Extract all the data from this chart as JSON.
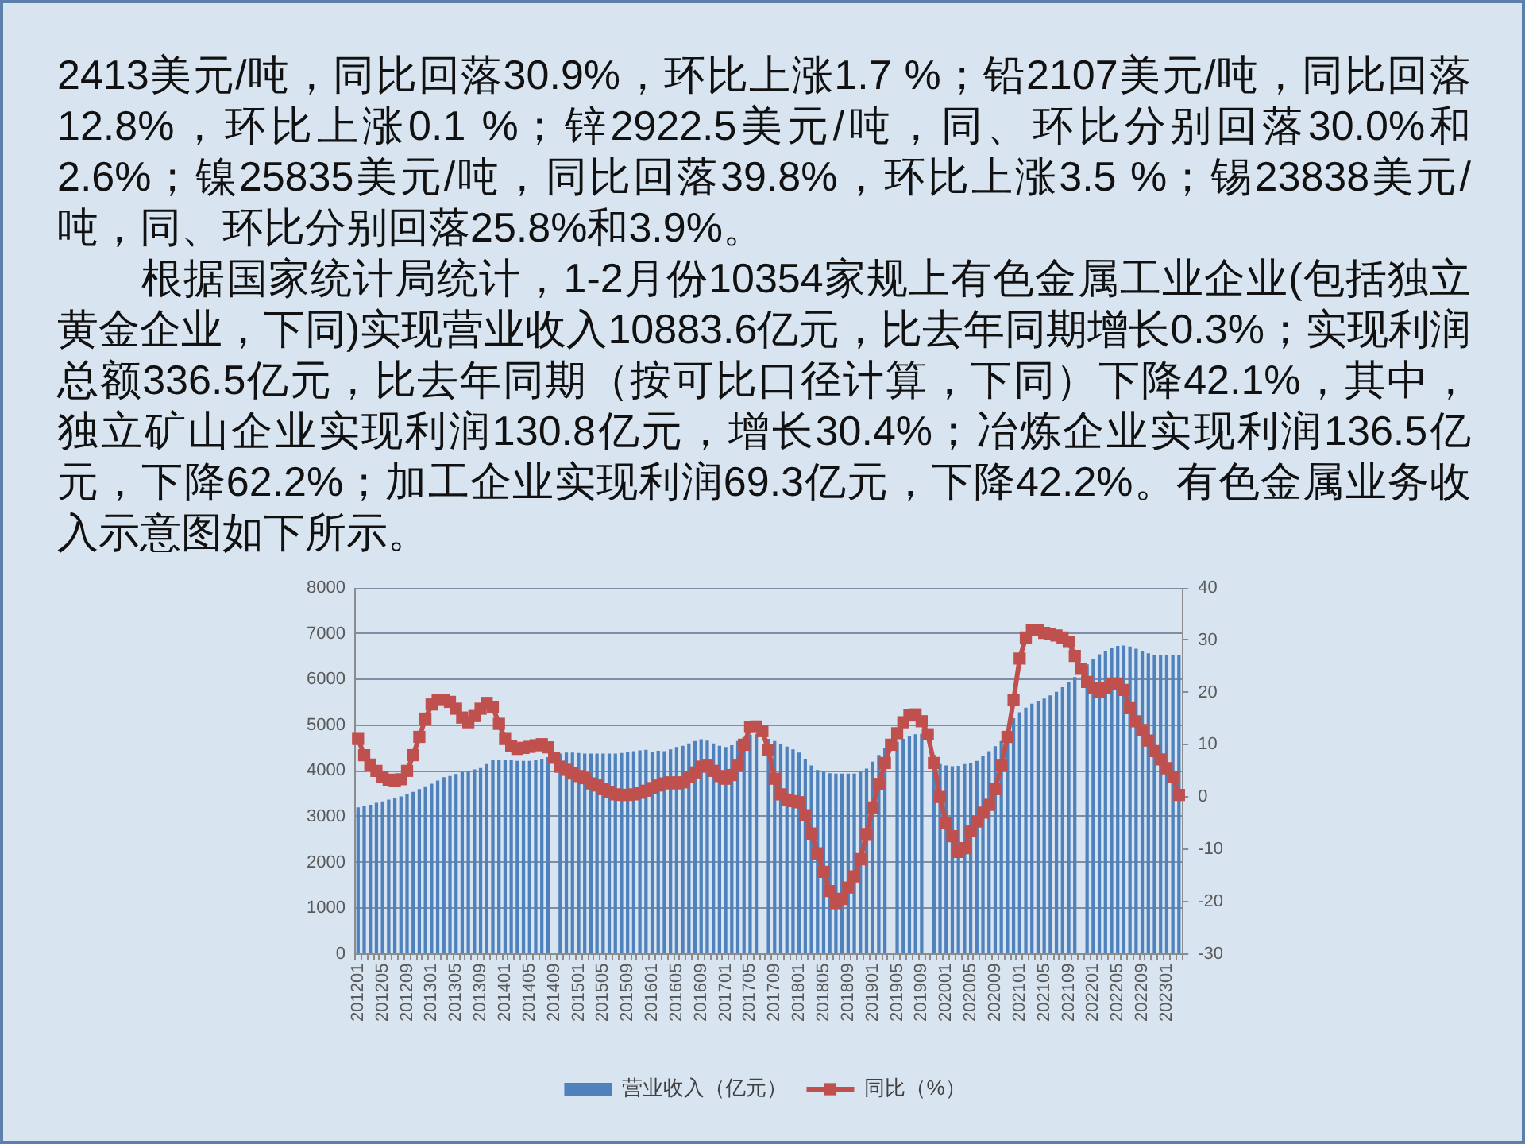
{
  "chart_data": {
    "type": "bar",
    "annotations": [
      "2413美元/吨，同比回落30.9%，环比上涨1.7 %；铅2107美元/吨，同比回落12.8%，环比上涨0.1 %；锌2922.5美元/吨，同、环比分别回落30.0%和2.6%；镍25835美元/吨，同比回落39.8%，环比上涨3.5 %；锡23838美元/吨，同、环比分别回落25.8%和3.9%。",
      "　　根据国家统计局统计，1-2月份10354家规上有色金属工业企业(包括独立黄金企业，下同)实现营业收入10883.6亿元，比去年同期增长0.3%；实现利润总额336.5亿元，比去年同期（按可比口径计算，下同）下降42.1%，其中，独立矿山企业实现利润130.8亿元，增长30.4%；冶炼企业实现利润136.5亿元，下降62.2%；加工企业实现利润69.3亿元，下降42.2%。有色金属业务收入示意图如下所示。"
    ],
    "categories": [
      "201201",
      null,
      null,
      null,
      "201205",
      null,
      null,
      null,
      "201209",
      null,
      null,
      null,
      "201301",
      null,
      null,
      null,
      "201305",
      null,
      null,
      null,
      "201309",
      null,
      null,
      null,
      "201401",
      null,
      null,
      null,
      "201405",
      null,
      null,
      null,
      "201409",
      null,
      null,
      null,
      "201501",
      null,
      null,
      null,
      "201505",
      null,
      null,
      null,
      "201509",
      null,
      null,
      null,
      "201601",
      null,
      null,
      null,
      "201605",
      null,
      null,
      null,
      "201609",
      null,
      null,
      null,
      "201701",
      null,
      null,
      null,
      "201705",
      null,
      null,
      null,
      "201709",
      null,
      null,
      null,
      "201801",
      null,
      null,
      null,
      "201805",
      null,
      null,
      null,
      "201809",
      null,
      null,
      null,
      "201901",
      null,
      null,
      null,
      "201905",
      null,
      null,
      null,
      "201909",
      null,
      null,
      null,
      "202001",
      null,
      null,
      null,
      "202005",
      null,
      null,
      null,
      "202009",
      null,
      null,
      null,
      "202101",
      null,
      null,
      null,
      "202105",
      null,
      null,
      null,
      "202109",
      null,
      null,
      null,
      "202201",
      null,
      null,
      null,
      "202205",
      null,
      null,
      null,
      "202209",
      null,
      null,
      null,
      "202301",
      null,
      null
    ],
    "series": [
      {
        "name": "营业收入（亿元）",
        "color": "#4f81bd",
        "values": [
          3200,
          3230,
          3260,
          3300,
          3330,
          3370,
          3400,
          3440,
          3490,
          3540,
          3600,
          3660,
          3720,
          3790,
          3860,
          3890,
          3930,
          3970,
          4000,
          4030,
          4060,
          4150,
          4230,
          4230,
          4230,
          4230,
          4220,
          4220,
          4220,
          4230,
          4260,
          4300,
          null,
          4380,
          4400,
          4400,
          4390,
          4380,
          4380,
          4380,
          4380,
          4380,
          4380,
          4390,
          4410,
          4430,
          4450,
          4460,
          4420,
          4440,
          4430,
          4470,
          4520,
          4550,
          4600,
          4650,
          4690,
          4660,
          4600,
          4550,
          4520,
          4560,
          4650,
          4740,
          4790,
          4810,
          null,
          4700,
          4650,
          4590,
          4530,
          4470,
          4400,
          4250,
          4120,
          4020,
          3980,
          3950,
          3940,
          3940,
          3940,
          3940,
          3980,
          4050,
          4200,
          4350,
          4500,
          null,
          4640,
          4700,
          4750,
          4800,
          4810,
          null,
          4350,
          4150,
          4120,
          4100,
          4110,
          4150,
          4180,
          4220,
          4330,
          4430,
          4540,
          4650,
          4900,
          5150,
          5280,
          5380,
          5470,
          5530,
          5580,
          5650,
          5730,
          5830,
          5950,
          6050,
          null,
          6330,
          6450,
          6550,
          6630,
          6680,
          6730,
          6740,
          6720,
          6670,
          6620,
          6570,
          6540,
          6530,
          6530,
          6530,
          6540
        ]
      },
      {
        "name": "同比（%）",
        "type": "line",
        "axis": "y2",
        "marker": "square",
        "color": "#c0504d",
        "values": [
          11.1,
          8.0,
          6.2,
          5.0,
          3.9,
          3.3,
          3.0,
          3.4,
          5.0,
          8.0,
          11.5,
          15.0,
          17.7,
          18.6,
          18.6,
          18.2,
          16.9,
          15.2,
          14.3,
          15.5,
          16.9,
          18.0,
          17.2,
          14.0,
          11.1,
          9.8,
          9.2,
          9.4,
          9.6,
          9.9,
          10.1,
          9.5,
          7.5,
          5.8,
          5.2,
          4.5,
          4.0,
          3.6,
          2.6,
          2.2,
          1.5,
          1.0,
          0.5,
          0.4,
          0.4,
          0.5,
          0.8,
          1.2,
          1.7,
          2.2,
          2.6,
          2.8,
          2.6,
          2.8,
          3.8,
          4.7,
          5.8,
          6.0,
          5.0,
          4.0,
          3.5,
          4.2,
          6.0,
          10.0,
          13.4,
          13.5,
          12.6,
          9.0,
          3.5,
          0.5,
          -0.5,
          -0.8,
          -1.0,
          -3.5,
          -7.0,
          -10.8,
          -14.3,
          -18.0,
          -20.3,
          -19.5,
          -17.3,
          -15.2,
          -11.9,
          -7.1,
          -2.0,
          2.5,
          6.5,
          10.0,
          12.2,
          14.3,
          15.6,
          15.8,
          14.5,
          12.0,
          6.5,
          0.0,
          -5.0,
          -7.5,
          -10.5,
          -9.8,
          -6.5,
          -4.7,
          -3.0,
          -1.5,
          1.5,
          6.0,
          11.5,
          18.5,
          26.5,
          30.5,
          32.0,
          32.0,
          31.4,
          31.2,
          30.9,
          30.5,
          29.7,
          27.0,
          24.5,
          22.0,
          20.8,
          20.2,
          20.8,
          21.7,
          21.7,
          20.5,
          17.0,
          14.5,
          12.8,
          10.8,
          8.8,
          7.2,
          5.5,
          3.8,
          0.4
        ]
      }
    ],
    "ylim": [
      0,
      8000
    ],
    "yticks": [
      0,
      1000,
      2000,
      3000,
      4000,
      5000,
      6000,
      7000,
      8000
    ],
    "y2lim": [
      -30,
      40
    ],
    "y2ticks": [
      -30,
      -20,
      -10,
      0,
      10,
      20,
      30,
      40
    ],
    "grid": "y",
    "legend": "bottom"
  }
}
